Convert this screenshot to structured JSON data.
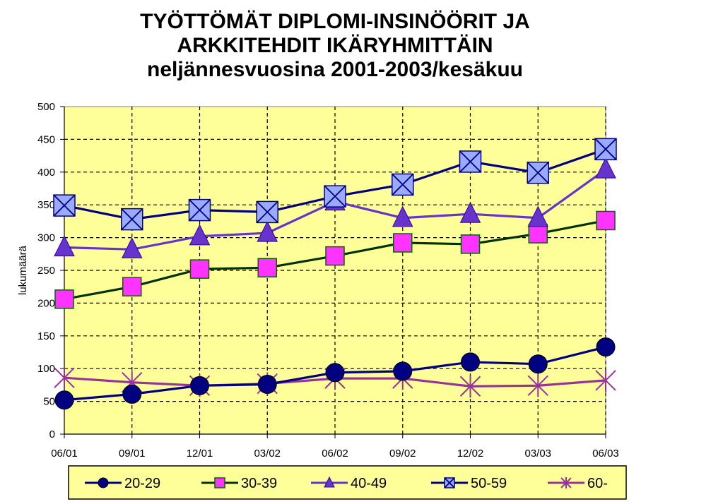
{
  "chart_data": {
    "type": "line",
    "title_lines": [
      "TYÖTTÖMÄT DIPLOMI-INSINÖÖRIT JA",
      "ARKKITEHDIT IKÄRYHMITTÄIN",
      "neljännesvuosina 2001-2003/kesäkuu"
    ],
    "xlabel": "",
    "ylabel": "lukumäärä",
    "categories": [
      "06/01",
      "09/01",
      "12/01",
      "03/02",
      "06/02",
      "09/02",
      "12/02",
      "03/03",
      "06/03"
    ],
    "ylim": [
      0,
      500
    ],
    "yticks": [
      0,
      50,
      100,
      150,
      200,
      250,
      300,
      350,
      400,
      450,
      500
    ],
    "grid": true,
    "legend_position": "bottom",
    "plot_background": "#ffff99",
    "series": [
      {
        "name": "20-29",
        "color": "#000080",
        "marker": "circle",
        "marker_fill": "#000080",
        "values": [
          52,
          61,
          74,
          76,
          94,
          96,
          110,
          107,
          133
        ]
      },
      {
        "name": "30-39",
        "color": "#003300",
        "marker": "square",
        "marker_fill": "#ff33ff",
        "values": [
          206,
          225,
          252,
          254,
          272,
          292,
          290,
          306,
          326
        ]
      },
      {
        "name": "40-49",
        "color": "#6633cc",
        "marker": "triangle",
        "marker_fill": "#6633cc",
        "values": [
          285,
          282,
          302,
          307,
          355,
          330,
          336,
          330,
          404
        ]
      },
      {
        "name": "50-59",
        "color": "#000080",
        "marker": "x-box",
        "marker_fill": "#99aaff",
        "values": [
          349,
          328,
          342,
          339,
          363,
          381,
          416,
          399,
          435
        ]
      },
      {
        "name": "60-",
        "color": "#993399",
        "marker": "star",
        "marker_fill": "#993399",
        "values": [
          86,
          79,
          74,
          77,
          85,
          85,
          73,
          74,
          82
        ]
      }
    ]
  }
}
